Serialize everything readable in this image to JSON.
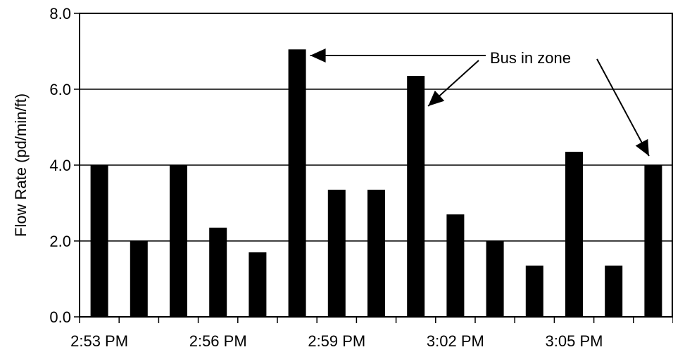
{
  "chart_data": {
    "type": "bar",
    "title": "",
    "xlabel": "",
    "ylabel": "Flow Rate (pd/min/ft)",
    "ylim": [
      0,
      8
    ],
    "y_ticks": [
      "0.0",
      "2.0",
      "4.0",
      "6.0",
      "8.0"
    ],
    "x_tick_labels": [
      "2:53 PM",
      "2:56 PM",
      "2:59 PM",
      "3:02 PM",
      "3:05 PM"
    ],
    "values": [
      4.0,
      2.0,
      4.0,
      2.35,
      1.7,
      7.05,
      3.35,
      3.35,
      6.35,
      2.7,
      2.0,
      1.35,
      4.35,
      1.35,
      4.0
    ],
    "grid": "horizontal",
    "bar_color": "#000000",
    "annotation": {
      "text": "Bus in zone",
      "points_to_bar_indices": [
        5,
        8,
        14
      ]
    }
  }
}
